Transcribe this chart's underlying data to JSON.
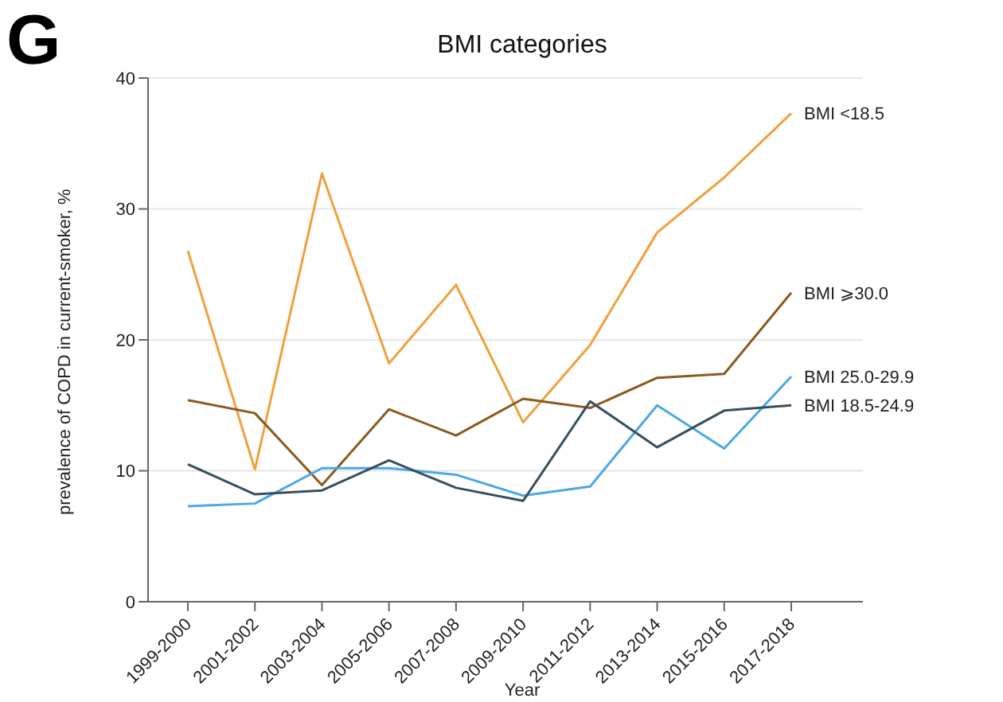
{
  "chart_data": {
    "type": "line",
    "title": "BMI categories",
    "xlabel": "Year",
    "ylabel": "prevalence of COPD in current-smoker, %",
    "annotations": [
      "G"
    ],
    "categories": [
      "1999-2000",
      "2001-2002",
      "2003-2004",
      "2005-2006",
      "2007-2008",
      "2009-2010",
      "2011-2012",
      "2013-2014",
      "2015-2016",
      "2017-2018"
    ],
    "series": [
      {
        "name": "BMI <18.5",
        "color": "#f0a03c",
        "values": [
          26.8,
          10.1,
          32.7,
          18.2,
          24.2,
          13.7,
          19.6,
          28.2,
          32.4,
          37.3
        ]
      },
      {
        "name": "BMI ⩾30.0",
        "color": "#8c5a1e",
        "values": [
          15.4,
          14.4,
          8.9,
          14.7,
          12.7,
          15.5,
          14.8,
          17.1,
          17.4,
          23.6
        ]
      },
      {
        "name": "BMI 25.0-29.9",
        "color": "#4ba8e6",
        "values": [
          7.3,
          7.5,
          10.2,
          10.2,
          9.7,
          8.1,
          8.8,
          15.0,
          11.7,
          17.2
        ]
      },
      {
        "name": "BMI 18.5-24.9",
        "color": "#37505f",
        "values": [
          10.5,
          8.2,
          8.5,
          10.8,
          8.7,
          7.7,
          15.3,
          11.8,
          14.6,
          15.0
        ]
      }
    ],
    "ylim": [
      0,
      40
    ],
    "yticks": [
      0,
      10,
      20,
      30,
      40
    ],
    "grid": "y",
    "marker": "none",
    "line_style": "solid"
  }
}
